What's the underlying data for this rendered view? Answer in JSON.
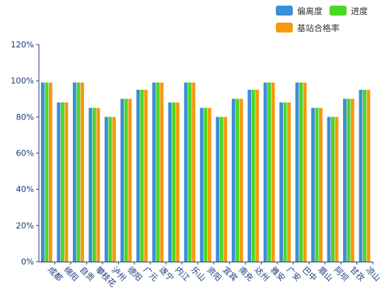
{
  "chart_data": {
    "type": "bar",
    "categories": [
      "成都",
      "绵阳",
      "自贡",
      "攀枝花",
      "泸州",
      "德阳",
      "广元",
      "遂宁",
      "内江",
      "乐山",
      "资阳",
      "宜宾",
      "南充",
      "达州",
      "雅安",
      "广安",
      "巴中",
      "眉山",
      "阿坝",
      "甘孜",
      "凉山"
    ],
    "series": [
      {
        "name": "偏离度",
        "color": "#3a8fd6",
        "values": [
          99,
          88,
          99,
          85,
          80,
          90,
          95,
          99,
          88,
          99,
          85,
          80,
          90,
          95,
          99,
          88,
          99,
          85,
          80,
          90,
          95
        ]
      },
      {
        "name": "进度",
        "color": "#4cd626",
        "values": [
          99,
          88,
          99,
          85,
          80,
          90,
          95,
          99,
          88,
          99,
          85,
          80,
          90,
          95,
          99,
          88,
          99,
          85,
          80,
          90,
          95
        ]
      },
      {
        "name": "基站合格率",
        "color": "#f59a0c",
        "values": [
          99,
          88,
          99,
          85,
          80,
          90,
          95,
          99,
          88,
          99,
          85,
          80,
          90,
          95,
          99,
          88,
          99,
          85,
          80,
          90,
          95
        ]
      }
    ],
    "y_ticks": [
      "0%",
      "20%",
      "40%",
      "60%",
      "80%",
      "100%",
      "120%"
    ],
    "ylim": [
      0,
      120
    ],
    "y_unit": "%",
    "grid": false,
    "legend_position": "top-right"
  }
}
